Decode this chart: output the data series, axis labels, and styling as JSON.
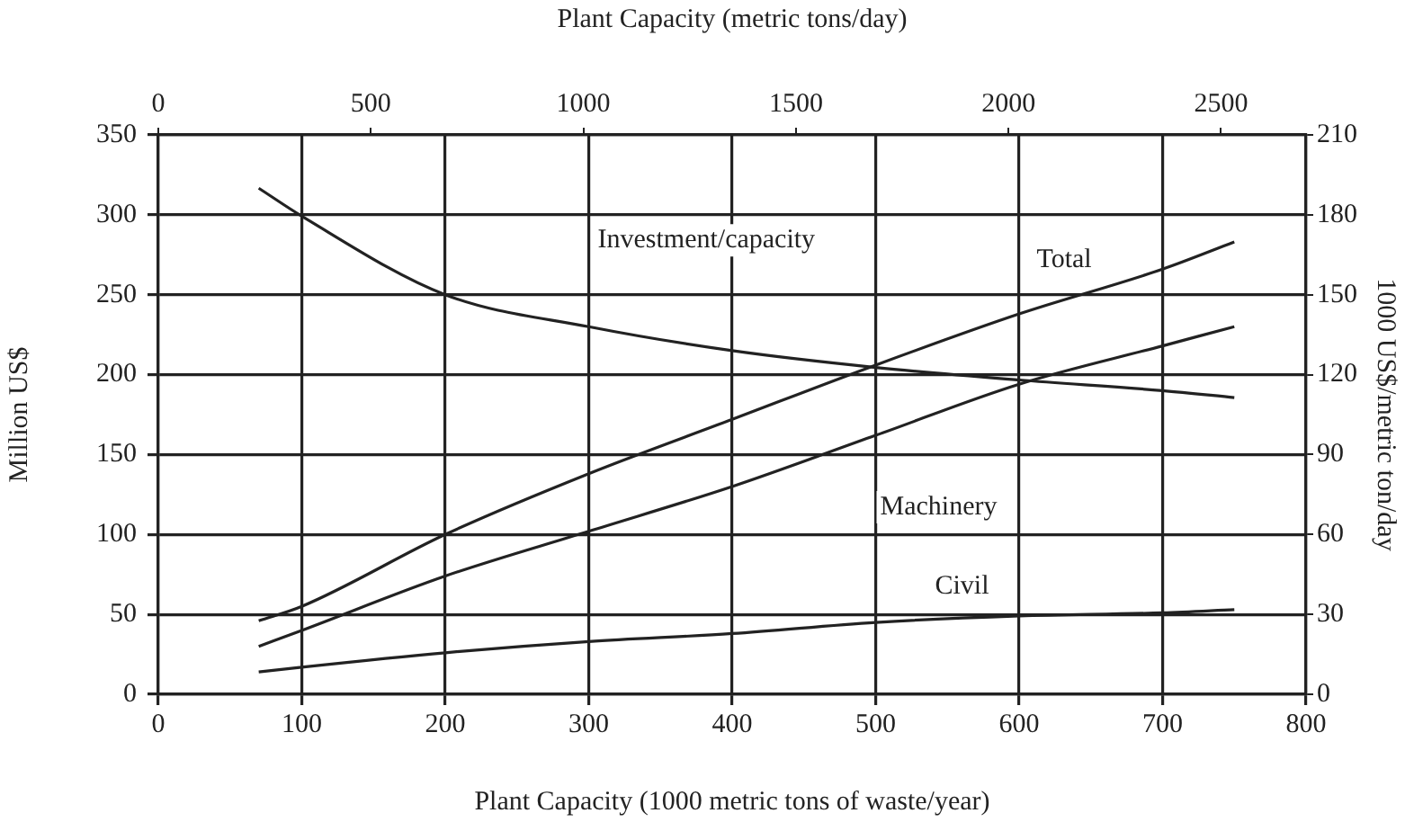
{
  "chart_data": {
    "type": "line",
    "xlabel": "Plant Capacity (1000 metric tons of waste/year)",
    "x2label": "Plant Capacity (metric tons/day)",
    "ylabel": "Million US$",
    "y2label": "1000 US$/metric ton/day",
    "x": [
      70,
      100,
      200,
      300,
      400,
      500,
      600,
      700,
      750
    ],
    "series": [
      {
        "name": "Investment/capacity",
        "color": "#222222",
        "axis": "y2",
        "values": [
          190,
          179.5,
          150,
          138,
          129,
          122.7,
          118,
          114,
          111.4
        ]
      },
      {
        "name": "Total",
        "color": "#222222",
        "values": [
          46,
          55,
          100,
          138,
          172,
          206,
          238,
          266,
          283
        ]
      },
      {
        "name": "Machinery",
        "color": "#222222",
        "values": [
          30,
          40,
          74,
          102,
          130,
          162,
          194,
          218,
          230
        ]
      },
      {
        "name": "Civil",
        "color": "#222222",
        "values": [
          14,
          17,
          26,
          33,
          38,
          45,
          49,
          51,
          53
        ]
      }
    ],
    "xlim": [
      0,
      800
    ],
    "xticks": [
      0,
      100,
      200,
      300,
      400,
      500,
      600,
      700,
      800
    ],
    "x2lim": [
      0,
      2700
    ],
    "x2ticks": [
      0,
      500,
      1000,
      1500,
      2000,
      2500
    ],
    "ylim": [
      0,
      350
    ],
    "yticks": [
      0,
      50,
      100,
      150,
      200,
      250,
      300,
      350
    ],
    "y2lim": [
      0,
      210
    ],
    "y2ticks": [
      0,
      30,
      60,
      90,
      120,
      150,
      180,
      210
    ],
    "grid": true,
    "marker": "none",
    "line_style": "solid",
    "legend": false
  }
}
